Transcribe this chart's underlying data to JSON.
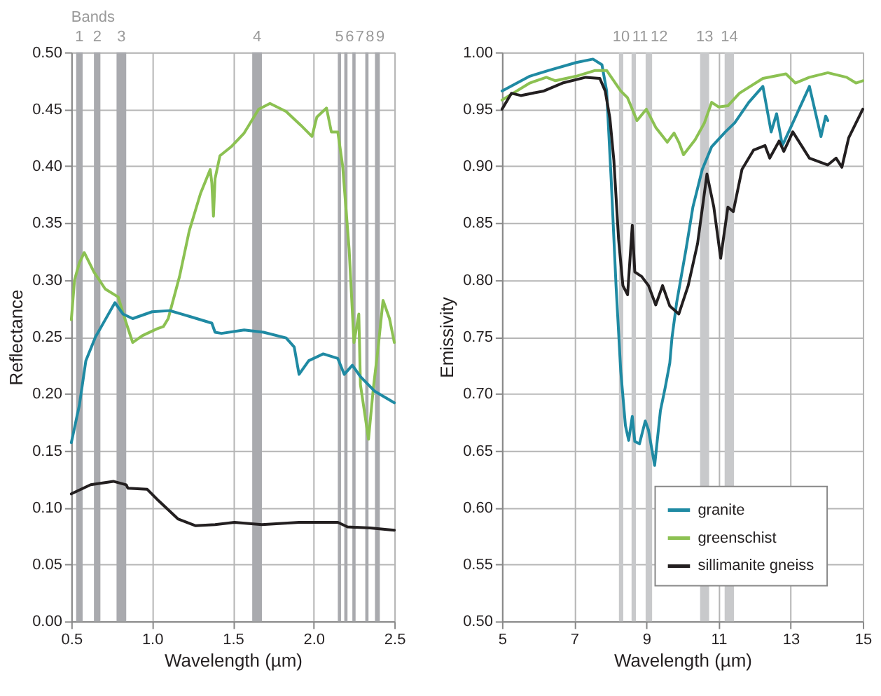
{
  "chart_data": [
    {
      "type": "line",
      "xlabel": "Wavelength (µm)",
      "ylabel": "Reflectance",
      "grid": true,
      "xlim": [
        0.5,
        2.5
      ],
      "ylim": [
        0,
        0.5
      ],
      "xticks": [
        {
          "value": 0.5,
          "label": "0.5"
        },
        {
          "value": 1,
          "label": "1.0"
        },
        {
          "value": 1.5,
          "label": "1.5"
        },
        {
          "value": 2,
          "label": "2.0"
        },
        {
          "value": 2.5,
          "label": "2.5"
        }
      ],
      "yticks": [
        {
          "value": 0,
          "label": "0.00"
        },
        {
          "value": 0.05,
          "label": "0.05"
        },
        {
          "value": 0.1,
          "label": "0.10"
        },
        {
          "value": 0.15,
          "label": "0.15"
        },
        {
          "value": 0.2,
          "label": "0.20"
        },
        {
          "value": 0.25,
          "label": "0.25"
        },
        {
          "value": 0.3,
          "label": "0.30"
        },
        {
          "value": 0.35,
          "label": "0.35"
        },
        {
          "value": 0.4,
          "label": "0.40"
        },
        {
          "value": 0.45,
          "label": "0.45"
        },
        {
          "value": 0.5,
          "label": "0.50"
        }
      ],
      "annotations": [
        "Bands"
      ],
      "bands": [
        {
          "axis": "x",
          "from": 0.53,
          "to": 0.57,
          "label": "1",
          "color": "#a9aaae"
        },
        {
          "axis": "x",
          "from": 0.64,
          "to": 0.68,
          "label": "2",
          "color": "#a9aaae"
        },
        {
          "axis": "x",
          "from": 0.78,
          "to": 0.84,
          "label": "3",
          "color": "#a9aaae"
        },
        {
          "axis": "x",
          "from": 1.62,
          "to": 1.68,
          "label": "4",
          "color": "#a9aaae"
        },
        {
          "axis": "x",
          "from": 2.15,
          "to": 2.17,
          "label": "5",
          "color": "#a9aaae"
        },
        {
          "axis": "x",
          "from": 2.19,
          "to": 2.21,
          "label": "6",
          "color": "#a9aaae"
        },
        {
          "axis": "x",
          "from": 2.24,
          "to": 2.26,
          "label": "7",
          "color": "#a9aaae"
        },
        {
          "axis": "x",
          "from": 2.32,
          "to": 2.34,
          "label": "8",
          "color": "#a9aaae"
        },
        {
          "axis": "x",
          "from": 2.38,
          "to": 2.41,
          "label": "9",
          "color": "#a9aaae"
        }
      ],
      "series": [
        {
          "color": "#8cc152",
          "x": [
            0.5,
            0.52,
            0.55,
            0.58,
            0.64,
            0.71,
            0.79,
            0.84,
            0.88,
            0.94,
            1.03,
            1.07,
            1.1,
            1.17,
            1.23,
            1.3,
            1.36,
            1.37,
            1.38,
            1.39,
            1.42,
            1.49,
            1.57,
            1.66,
            1.73,
            1.83,
            1.92,
            1.99,
            2.02,
            2.08,
            2.11,
            2.15,
            2.18,
            2.22,
            2.25,
            2.28,
            2.29,
            2.34,
            2.37,
            2.4,
            2.43,
            2.47,
            2.5
          ],
          "values": [
            0.265,
            0.3,
            0.315,
            0.324,
            0.307,
            0.292,
            0.285,
            0.262,
            0.245,
            0.251,
            0.257,
            0.259,
            0.266,
            0.303,
            0.343,
            0.376,
            0.397,
            0.385,
            0.356,
            0.389,
            0.409,
            0.417,
            0.429,
            0.45,
            0.455,
            0.448,
            0.436,
            0.426,
            0.443,
            0.451,
            0.43,
            0.43,
            0.4,
            0.327,
            0.245,
            0.27,
            0.208,
            0.16,
            0.205,
            0.241,
            0.282,
            0.266,
            0.245
          ]
        },
        {
          "color": "#1f8aa3",
          "x": [
            0.5,
            0.55,
            0.59,
            0.65,
            0.71,
            0.77,
            0.82,
            0.88,
            1.0,
            1.11,
            1.23,
            1.37,
            1.39,
            1.43,
            1.57,
            1.69,
            1.83,
            1.88,
            1.91,
            1.97,
            2.06,
            2.15,
            2.19,
            2.24,
            2.29,
            2.38,
            2.5
          ],
          "values": [
            0.157,
            0.19,
            0.229,
            0.25,
            0.265,
            0.28,
            0.27,
            0.266,
            0.272,
            0.273,
            0.268,
            0.262,
            0.254,
            0.253,
            0.256,
            0.254,
            0.249,
            0.241,
            0.217,
            0.229,
            0.235,
            0.231,
            0.217,
            0.225,
            0.215,
            0.202,
            0.192
          ]
        },
        {
          "color": "#231f20",
          "x": [
            0.5,
            0.62,
            0.76,
            0.84,
            0.85,
            0.97,
            1.04,
            1.16,
            1.27,
            1.39,
            1.51,
            1.68,
            1.91,
            2.15,
            2.21,
            2.35,
            2.5
          ],
          "values": [
            0.112,
            0.12,
            0.123,
            0.12,
            0.117,
            0.116,
            0.106,
            0.09,
            0.084,
            0.085,
            0.087,
            0.085,
            0.087,
            0.087,
            0.083,
            0.082,
            0.08
          ]
        }
      ]
    },
    {
      "type": "line",
      "xlabel": "Wavelength (µm)",
      "ylabel": "Emissivity",
      "grid": true,
      "legend": "bottom right",
      "xlim": [
        5,
        15
      ],
      "ylim": [
        0.5,
        1
      ],
      "xticks": [
        5,
        7,
        9,
        11,
        13,
        15
      ],
      "yticks": [
        {
          "value": 0.5,
          "label": "0.50"
        },
        {
          "value": 0.55,
          "label": "0.55"
        },
        {
          "value": 0.6,
          "label": "0.60"
        },
        {
          "value": 0.65,
          "label": "0.65"
        },
        {
          "value": 0.7,
          "label": "0.70"
        },
        {
          "value": 0.75,
          "label": "0.75"
        },
        {
          "value": 0.8,
          "label": "0.80"
        },
        {
          "value": 0.85,
          "label": "0.85"
        },
        {
          "value": 0.9,
          "label": "0.90"
        },
        {
          "value": 0.95,
          "label": "0.95"
        },
        {
          "value": 1,
          "label": "1.00"
        }
      ],
      "bands": [
        {
          "axis": "x",
          "from": 8.24,
          "to": 8.36,
          "label": "10",
          "color": "#c8c9cb"
        },
        {
          "axis": "x",
          "from": 8.59,
          "to": 8.71,
          "label": "11",
          "color": "#c8c9cb"
        },
        {
          "axis": "x",
          "from": 8.98,
          "to": 9.16,
          "label": "12",
          "color": "#c8c9cb"
        },
        {
          "axis": "x",
          "from": 10.49,
          "to": 10.74,
          "label": "13",
          "color": "#c8c9cb"
        },
        {
          "axis": "x",
          "from": 11.17,
          "to": 11.43,
          "label": "14",
          "color": "#c8c9cb"
        }
      ],
      "series": [
        {
          "name": "granite",
          "color": "#1f8aa3",
          "x": [
            5,
            5.77,
            6.29,
            7.06,
            7.52,
            7.77,
            7.9,
            8.03,
            8.16,
            8.29,
            8.42,
            8.51,
            8.61,
            8.68,
            8.81,
            8.97,
            9.06,
            9.23,
            9.39,
            9.52,
            9.65,
            9.71,
            9.84,
            10.1,
            10.29,
            10.55,
            10.81,
            11.19,
            11.45,
            11.84,
            12.23,
            12.46,
            12.61,
            12.77,
            13.06,
            13.52,
            13.84,
            13.97,
            14.03
          ],
          "values": [
            0.966,
            0.979,
            0.984,
            0.991,
            0.994,
            0.989,
            0.966,
            0.885,
            0.795,
            0.72,
            0.672,
            0.659,
            0.68,
            0.658,
            0.656,
            0.676,
            0.668,
            0.637,
            0.685,
            0.705,
            0.727,
            0.749,
            0.78,
            0.827,
            0.864,
            0.897,
            0.917,
            0.93,
            0.938,
            0.956,
            0.97,
            0.93,
            0.946,
            0.918,
            0.938,
            0.97,
            0.926,
            0.944,
            0.94
          ]
        },
        {
          "name": "greenschist",
          "color": "#8cc152",
          "x": [
            5,
            5.77,
            6.23,
            6.48,
            7.06,
            7.58,
            7.9,
            8.29,
            8.48,
            8.74,
            9.0,
            9.26,
            9.58,
            9.77,
            9.9,
            10.03,
            10.35,
            10.61,
            10.81,
            11.0,
            11.26,
            11.58,
            12.23,
            12.87,
            13.13,
            13.52,
            14.03,
            14.55,
            14.81,
            15
          ],
          "values": [
            0.958,
            0.973,
            0.978,
            0.975,
            0.979,
            0.984,
            0.984,
            0.966,
            0.96,
            0.94,
            0.95,
            0.934,
            0.921,
            0.929,
            0.921,
            0.91,
            0.923,
            0.938,
            0.956,
            0.952,
            0.953,
            0.964,
            0.977,
            0.981,
            0.973,
            0.978,
            0.982,
            0.978,
            0.973,
            0.975
          ]
        },
        {
          "name": "sillimanite gneiss",
          "color": "#231f20",
          "x": [
            5,
            5.26,
            5.52,
            6.16,
            6.68,
            7.32,
            7.71,
            7.86,
            7.99,
            8.1,
            8.23,
            8.35,
            8.48,
            8.61,
            8.68,
            8.87,
            9.06,
            9.26,
            9.45,
            9.65,
            9.9,
            10.16,
            10.42,
            10.68,
            10.87,
            11.06,
            11.26,
            11.41,
            11.65,
            11.97,
            12.29,
            12.42,
            12.68,
            12.81,
            13.06,
            13.52,
            14.03,
            14.26,
            14.42,
            14.61,
            15
          ],
          "values": [
            0.95,
            0.964,
            0.962,
            0.966,
            0.973,
            0.978,
            0.977,
            0.966,
            0.942,
            0.905,
            0.836,
            0.795,
            0.787,
            0.848,
            0.807,
            0.803,
            0.795,
            0.778,
            0.795,
            0.777,
            0.77,
            0.795,
            0.832,
            0.893,
            0.864,
            0.819,
            0.864,
            0.86,
            0.897,
            0.914,
            0.918,
            0.907,
            0.922,
            0.913,
            0.93,
            0.907,
            0.901,
            0.907,
            0.899,
            0.925,
            0.95
          ]
        }
      ]
    }
  ]
}
